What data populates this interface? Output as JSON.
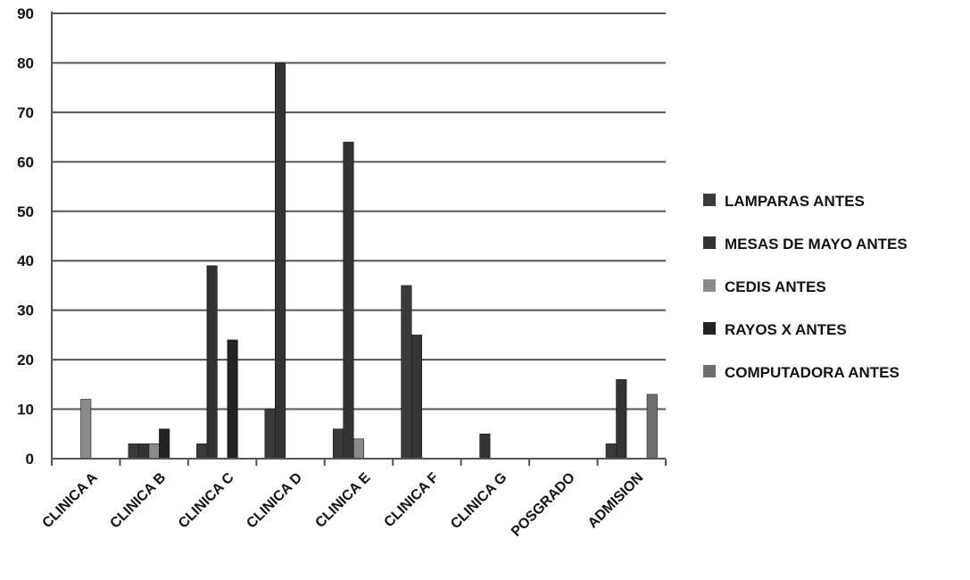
{
  "chart_data": {
    "type": "bar",
    "title": "",
    "xlabel": "",
    "ylabel": "",
    "ylim": [
      0,
      90
    ],
    "yticks": [
      0,
      10,
      20,
      30,
      40,
      50,
      60,
      70,
      80,
      90
    ],
    "grid": true,
    "legend_position": "right",
    "categories": [
      "CLINICA A",
      "CLINICA B",
      "CLINICA C",
      "CLINICA D",
      "CLINICA E",
      "CLINICA F",
      "CLINICA G",
      "POSGRADO",
      "ADMISION"
    ],
    "series": [
      {
        "name": "LAMPARAS ANTES",
        "color": "#3a3a3a",
        "values": [
          0,
          3,
          3,
          10,
          6,
          35,
          0,
          0,
          3
        ]
      },
      {
        "name": "MESAS DE MAYO ANTES",
        "color": "#333333",
        "values": [
          0,
          3,
          39,
          80,
          64,
          25,
          5,
          0,
          16
        ]
      },
      {
        "name": "CEDIS ANTES",
        "color": "#8a8a8a",
        "values": [
          12,
          3,
          0,
          0,
          4,
          0,
          0,
          0,
          0
        ]
      },
      {
        "name": "RAYOS X ANTES",
        "color": "#222222",
        "values": [
          0,
          6,
          24,
          0,
          0,
          0,
          0,
          0,
          0
        ]
      },
      {
        "name": "COMPUTADORA ANTES",
        "color": "#6f6f6f",
        "values": [
          0,
          0,
          0,
          0,
          0,
          0,
          0,
          0,
          13
        ]
      }
    ]
  }
}
